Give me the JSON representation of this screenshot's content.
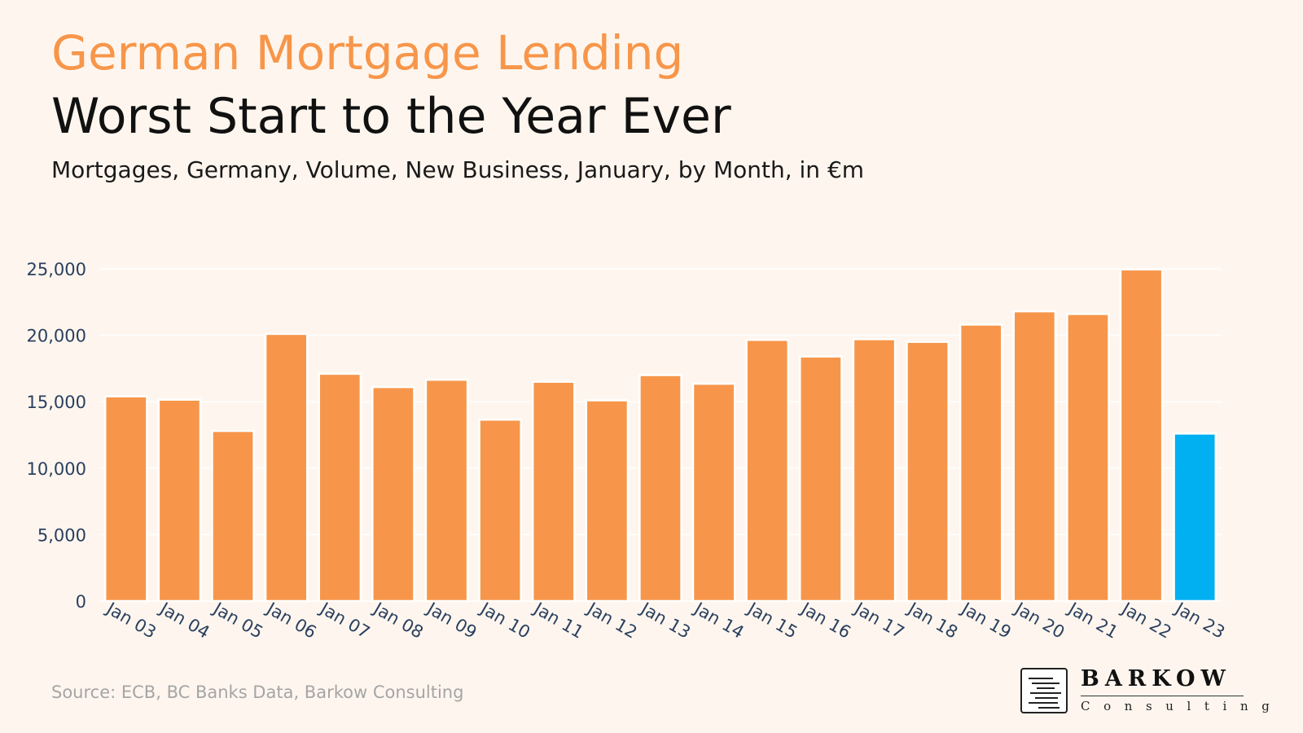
{
  "header": {
    "title": "German Mortgage Lending",
    "subtitle": "Worst Start to the Year Ever",
    "caption": "Mortgages, Germany, Volume, New Business, January, by Month, in €m"
  },
  "footer": {
    "source": "Source: ECB, BC Banks Data, Barkow Consulting"
  },
  "logo": {
    "name": "BARKOW",
    "sub": "Consulting"
  },
  "colors": {
    "background": "#fef6ee",
    "bar": "#f7964a",
    "highlight": "#00b0f0",
    "axis_text": "#2a3f5f",
    "grid": "#ffffff"
  },
  "chart_data": {
    "type": "bar",
    "categories": [
      "Jan 03",
      "Jan 04",
      "Jan 05",
      "Jan 06",
      "Jan 07",
      "Jan 08",
      "Jan 09",
      "Jan 10",
      "Jan 11",
      "Jan 12",
      "Jan 13",
      "Jan 14",
      "Jan 15",
      "Jan 16",
      "Jan 17",
      "Jan 18",
      "Jan 19",
      "Jan 20",
      "Jan 21",
      "Jan 22",
      "Jan 23"
    ],
    "values": [
      15400,
      15150,
      12800,
      20100,
      17100,
      16100,
      16650,
      13650,
      16500,
      15100,
      17000,
      16350,
      19650,
      18400,
      19700,
      19500,
      20800,
      21800,
      21600,
      24950,
      12600
    ],
    "highlight_index": 20,
    "ylim": [
      0,
      25000
    ],
    "yticks": [
      0,
      5000,
      10000,
      15000,
      20000,
      25000
    ],
    "ytick_labels": [
      "0",
      "5,000",
      "10,000",
      "15,000",
      "20,000",
      "25,000"
    ],
    "xlabel": "",
    "ylabel": "",
    "grid": true,
    "legend": false
  }
}
